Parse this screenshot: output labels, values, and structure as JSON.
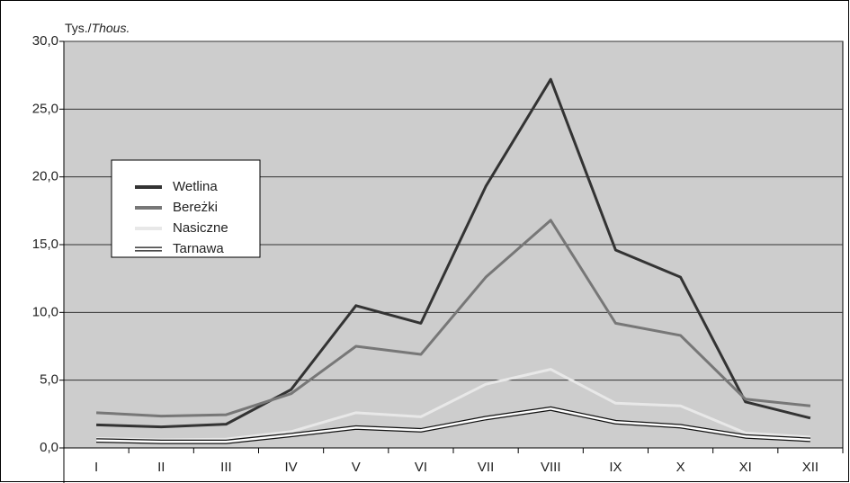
{
  "chart_data": {
    "type": "line",
    "y_label_pl": "Tys./",
    "y_label_en": "Thous.",
    "categories": [
      "I",
      "II",
      "III",
      "IV",
      "V",
      "VI",
      "VII",
      "VIII",
      "IX",
      "X",
      "XI",
      "XII"
    ],
    "series": [
      {
        "name": "Wetlina",
        "color": "#333333",
        "values": [
          1.7,
          1.55,
          1.75,
          4.3,
          10.5,
          9.2,
          19.3,
          27.2,
          14.6,
          12.6,
          3.4,
          2.2
        ]
      },
      {
        "name": "Bereżki",
        "color": "#777777",
        "values": [
          2.6,
          2.35,
          2.45,
          4.0,
          7.5,
          6.9,
          12.6,
          16.8,
          9.2,
          8.3,
          3.6,
          3.1
        ]
      },
      {
        "name": "Nasiczne",
        "color": "#e8e8e8",
        "values": [
          0.7,
          0.6,
          0.65,
          1.2,
          2.6,
          2.3,
          4.7,
          5.8,
          3.3,
          3.1,
          1.1,
          0.8
        ]
      },
      {
        "name": "Tarnawa",
        "color": "#ffffff",
        "outline": "#111111",
        "values": [
          0.55,
          0.45,
          0.45,
          0.95,
          1.5,
          1.3,
          2.2,
          2.9,
          1.9,
          1.6,
          0.85,
          0.6
        ]
      }
    ],
    "ylim": [
      0,
      30
    ],
    "yticks": [
      {
        "value": 0,
        "label": "0,0"
      },
      {
        "value": 5,
        "label": "5,0"
      },
      {
        "value": 10,
        "label": "10,0"
      },
      {
        "value": 15,
        "label": "15,0"
      },
      {
        "value": 20,
        "label": "20,0"
      },
      {
        "value": 25,
        "label": "25,0"
      },
      {
        "value": 30,
        "label": "30,0"
      }
    ],
    "grid": true,
    "background": "#cdcdcd"
  }
}
